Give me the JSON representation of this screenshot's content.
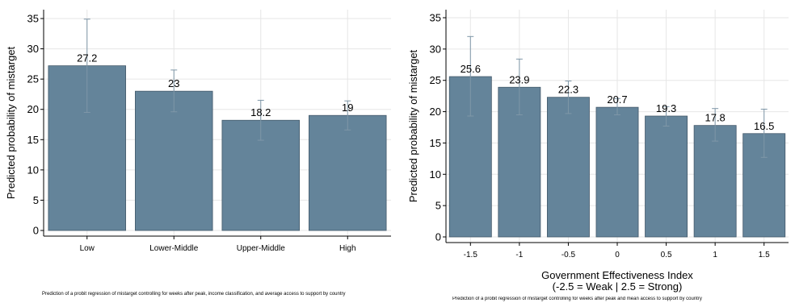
{
  "chart_data": [
    {
      "type": "bar",
      "ylabel": "Predicted probability of mistarget",
      "xlabel": "",
      "categories": [
        "Low",
        "Lower-Middle",
        "Upper-Middle",
        "High"
      ],
      "values": [
        27.2,
        23,
        18.2,
        19
      ],
      "value_labels": [
        "27.2",
        "23",
        "18.2",
        "19"
      ],
      "ci_low": [
        19.5,
        19.6,
        14.9,
        16.6
      ],
      "ci_high": [
        34.9,
        26.5,
        21.5,
        21.4
      ],
      "yticks": [
        "0",
        "5",
        "10",
        "15",
        "20",
        "25",
        "30",
        "35"
      ],
      "ylim": [
        0,
        36
      ],
      "grid": true,
      "bar_color": "#64849a",
      "note": "Prediction of a probit regression of mistarget controlling for weeks after peak, income classification, and average access to support by country"
    },
    {
      "type": "bar",
      "ylabel": "Predicted probability of mistarget",
      "xlabel": "Government Effectiveness Index",
      "xlabel2": "(-2.5 = Weak | 2.5 = Strong)",
      "categories": [
        "-1.5",
        "-1",
        "-0.5",
        "0",
        "0.5",
        "1",
        "1.5"
      ],
      "values": [
        25.6,
        23.9,
        22.3,
        20.7,
        19.3,
        17.8,
        16.5
      ],
      "value_labels": [
        "25.6",
        "23.9",
        "22.3",
        "20.7",
        "19.3",
        "17.8",
        "16.5"
      ],
      "ci_low": [
        19.3,
        19.5,
        19.7,
        19.5,
        17.7,
        15.3,
        12.7
      ],
      "ci_high": [
        32.0,
        28.4,
        24.9,
        22.1,
        20.8,
        20.5,
        20.4
      ],
      "yticks": [
        "0",
        "5",
        "10",
        "15",
        "20",
        "25",
        "30",
        "35"
      ],
      "ylim": [
        0,
        36
      ],
      "grid": true,
      "bar_color": "#64849a",
      "note": "Prediction of a probit regression of mistarget controlling for weeks after peak and mean access to support by country"
    }
  ]
}
